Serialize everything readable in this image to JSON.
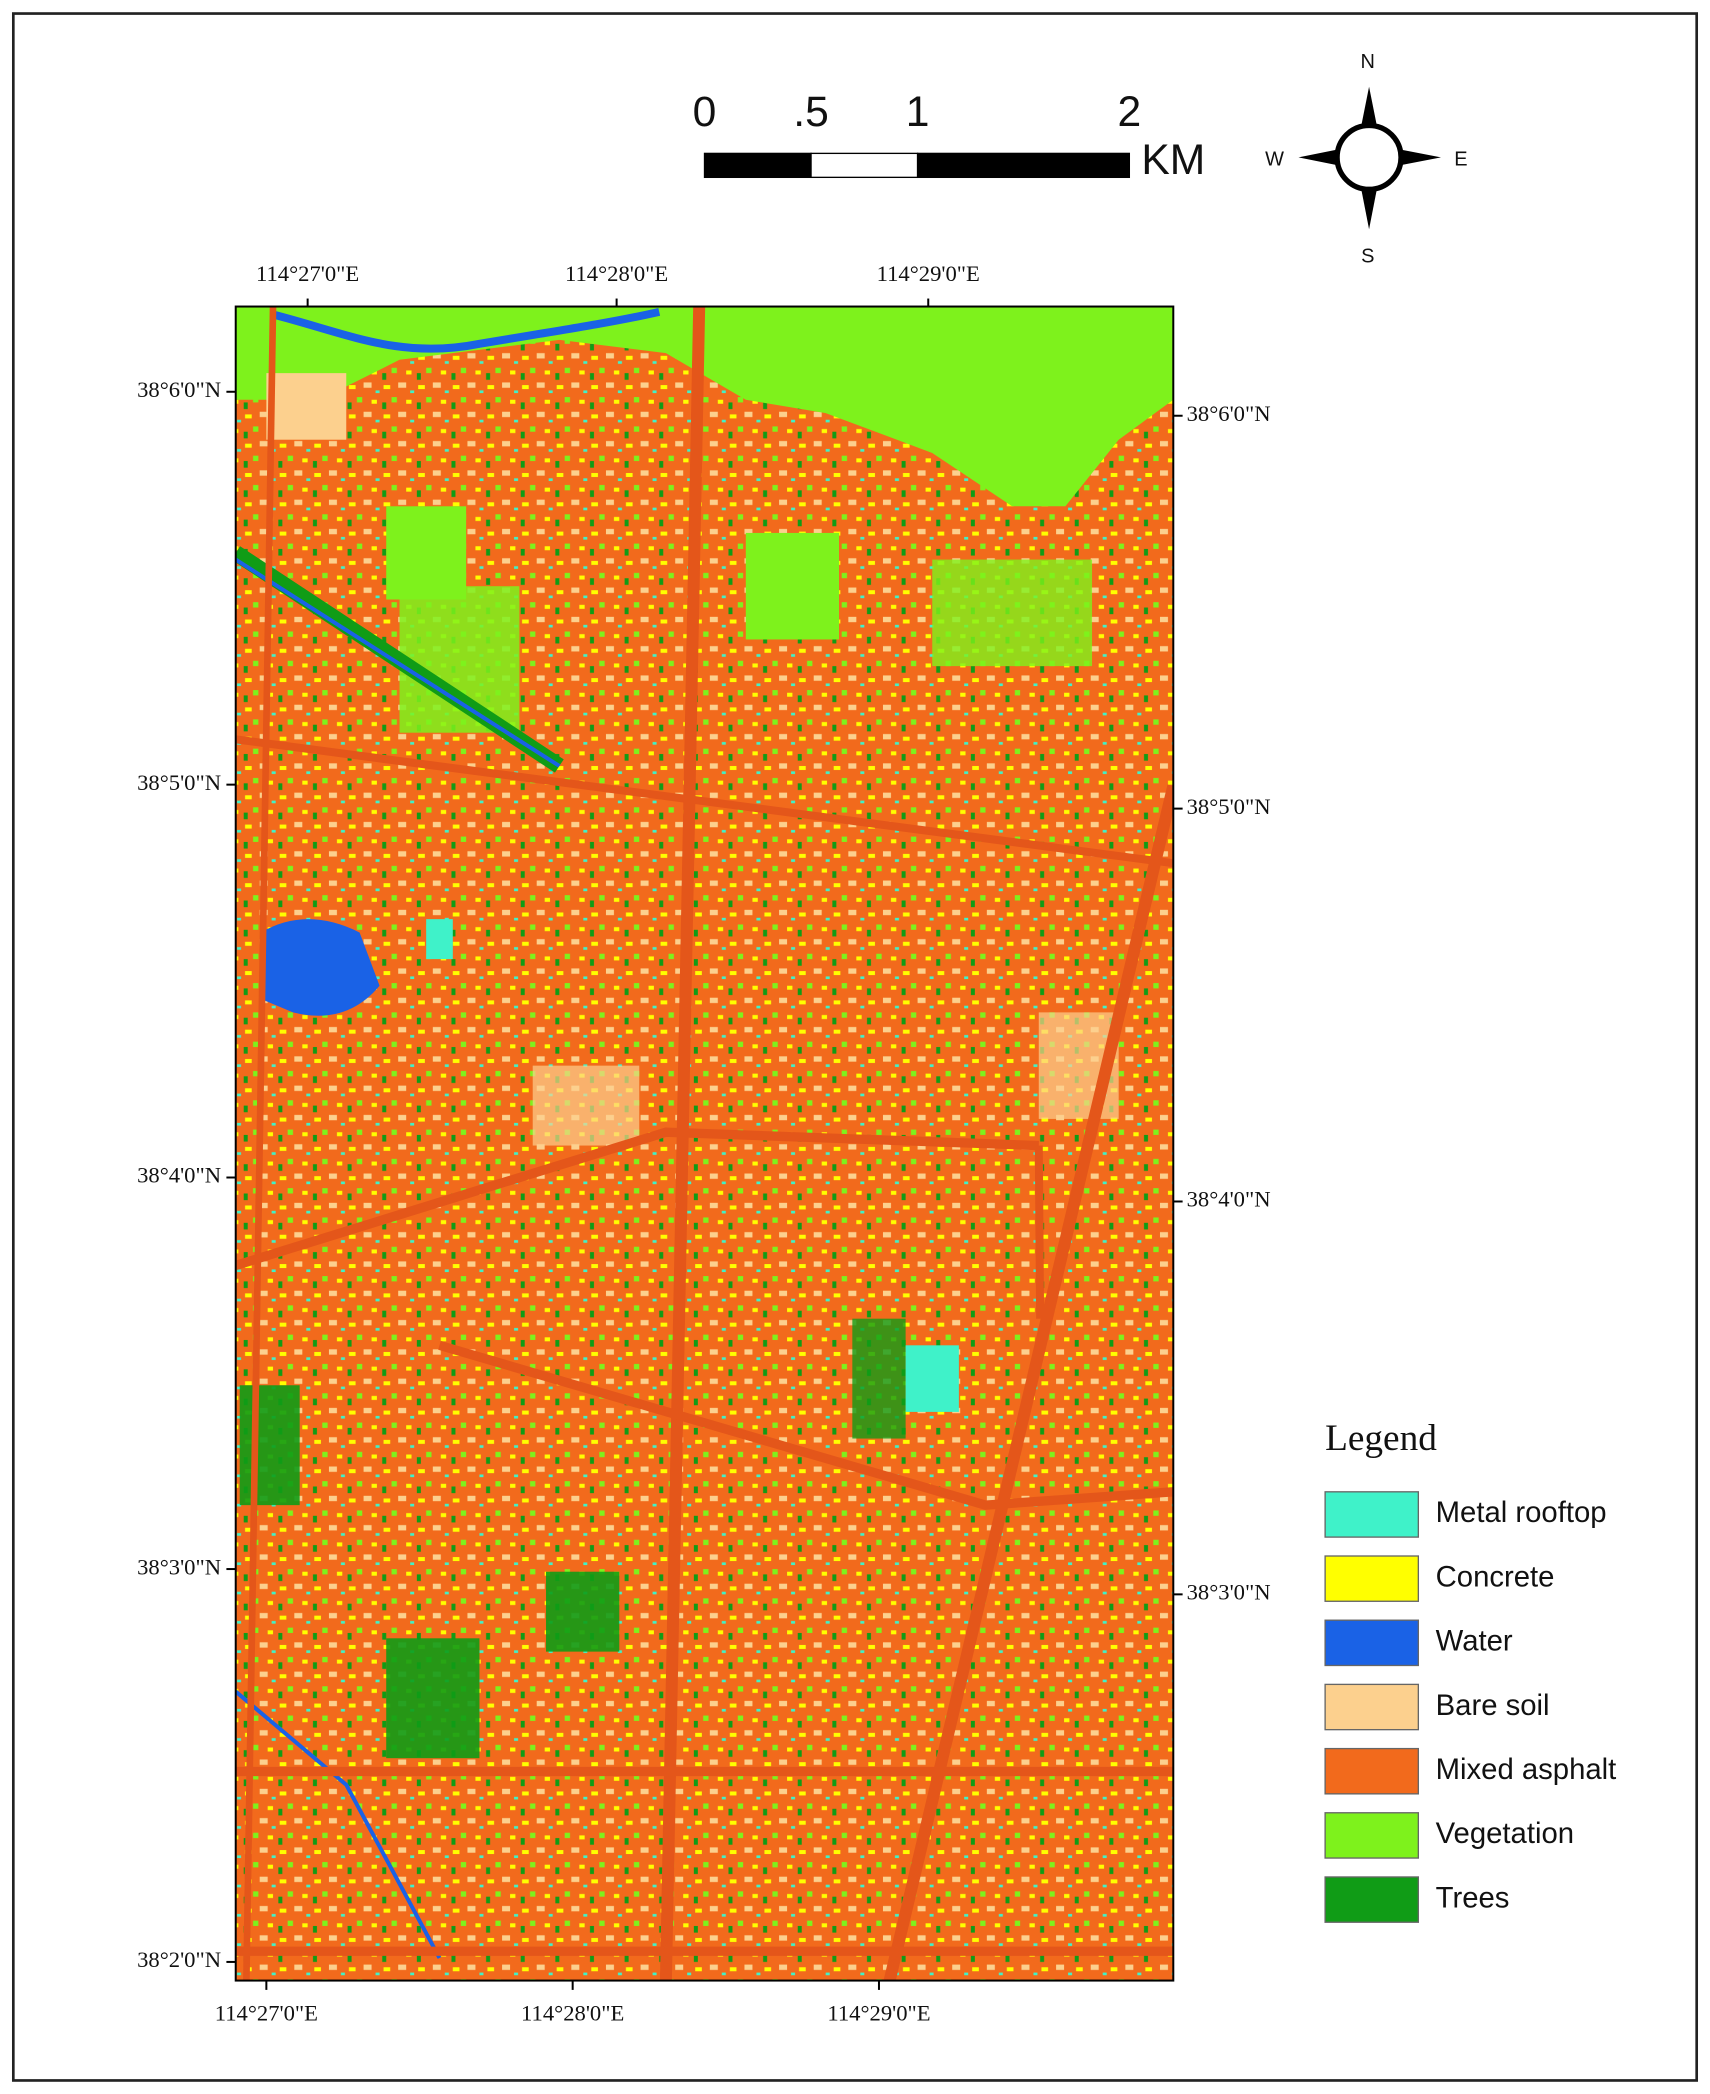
{
  "scale_bar": {
    "labels": [
      "0",
      ".5",
      "1",
      "2"
    ],
    "unit": "KM"
  },
  "north_arrow": {
    "n": "N",
    "s": "S",
    "e": "E",
    "w": "W"
  },
  "coordinates": {
    "top": [
      "114°27'0\"E",
      "114°28'0\"E",
      "114°29'0\"E"
    ],
    "bottom": [
      "114°27'0\"E",
      "114°28'0\"E",
      "114°29'0\"E"
    ],
    "left": [
      "38°6'0\"N",
      "38°5'0\"N",
      "38°4'0\"N",
      "38°3'0\"N",
      "38°2'0\"N"
    ],
    "right": [
      "38°6'0\"N",
      "38°5'0\"N",
      "38°4'0\"N",
      "38°3'0\"N"
    ]
  },
  "legend": {
    "title": "Legend",
    "items": [
      {
        "label": "Metal rooftop",
        "color": "#3ff2c9"
      },
      {
        "label": "Concrete",
        "color": "#ffff00"
      },
      {
        "label": "Water",
        "color": "#1a62e6"
      },
      {
        "label": "Bare soil",
        "color": "#fcd08e"
      },
      {
        "label": "Mixed asphalt",
        "color": "#f26a1c"
      },
      {
        "label": "Vegetation",
        "color": "#7ef21c"
      },
      {
        "label": "Trees",
        "color": "#109c16"
      }
    ]
  }
}
